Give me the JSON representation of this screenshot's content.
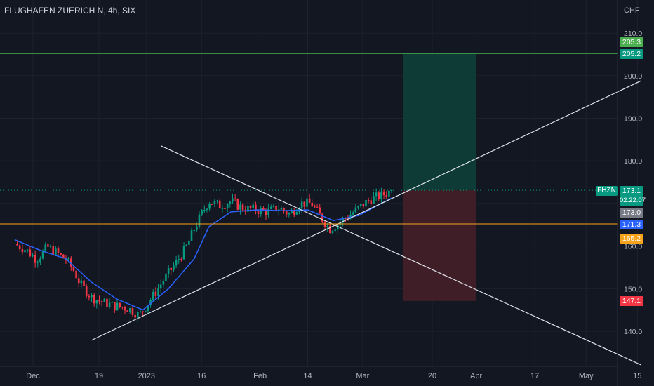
{
  "header": {
    "title": "FLUGHAFEN ZUERICH N, 4h, SIX",
    "currency": "CHF"
  },
  "colors": {
    "background": "#131722",
    "grid": "#1e222d",
    "axis_text": "#b2b5be",
    "candle_up": "#089981",
    "candle_down": "#f23645",
    "ma_line": "#2962ff",
    "trendline": "#e0e3eb",
    "support_line": "#f7a21b",
    "target_line": "#4caf50",
    "profit_zone": "#0e3b36",
    "loss_zone": "#3f1e27"
  },
  "price_labels": {
    "target_high": "205.3",
    "target_line": "205.2",
    "symbol": "FHZN",
    "last_price": "173.1",
    "countdown": "02:22:07",
    "prev_close": "173.0",
    "ma_value": "171.3",
    "support": "165.2",
    "stop": "147.1"
  },
  "chart_data": {
    "type": "candlestick",
    "title": "FLUGHAFEN ZUERICH N, 4h, SIX",
    "ylabel": "CHF",
    "ylim": [
      132,
      212
    ],
    "yticks": [
      140.0,
      150.0,
      160.0,
      170.0,
      180.0,
      190.0,
      200.0,
      210.0
    ],
    "ytick_labels": [
      "140.0",
      "150.0",
      "160.0",
      "170.0",
      "180.0",
      "190.0",
      "200.0",
      "210.0"
    ],
    "grid": true,
    "xticks": [
      {
        "label": "Dec",
        "date": "2022-12-01"
      },
      {
        "label": "19",
        "date": "2022-12-19"
      },
      {
        "label": "2023",
        "date": "2023-01-01"
      },
      {
        "label": "16",
        "date": "2023-01-16"
      },
      {
        "label": "Feb",
        "date": "2023-02-01"
      },
      {
        "label": "14",
        "date": "2023-02-14"
      },
      {
        "label": "Mar",
        "date": "2023-03-01"
      },
      {
        "label": "20",
        "date": "2023-03-20"
      },
      {
        "label": "Apr",
        "date": "2023-04-01"
      },
      {
        "label": "17",
        "date": "2023-04-17"
      },
      {
        "label": "May",
        "date": "2023-05-01"
      },
      {
        "label": "15",
        "date": "2023-05-15"
      }
    ],
    "close_path": [
      [
        "2022-11-26",
        160.5
      ],
      [
        "2022-11-29",
        159.2
      ],
      [
        "2022-12-02",
        156.8
      ],
      [
        "2022-12-05",
        159.8
      ],
      [
        "2022-12-08",
        158.0
      ],
      [
        "2022-12-10",
        156.8
      ],
      [
        "2022-12-12",
        154.5
      ],
      [
        "2022-12-14",
        151.0
      ],
      [
        "2022-12-17",
        148.0
      ],
      [
        "2022-12-20",
        146.8
      ],
      [
        "2022-12-23",
        146.0
      ],
      [
        "2022-12-27",
        145.4
      ],
      [
        "2022-12-30",
        143.8
      ],
      [
        "2023-01-03",
        148.5
      ],
      [
        "2023-01-06",
        152.5
      ],
      [
        "2023-01-09",
        156.0
      ],
      [
        "2023-01-12",
        160.0
      ],
      [
        "2023-01-14",
        164.0
      ],
      [
        "2023-01-16",
        167.5
      ],
      [
        "2023-01-18",
        170.5
      ],
      [
        "2023-01-21",
        169.5
      ],
      [
        "2023-01-24",
        170.5
      ],
      [
        "2023-01-27",
        169.0
      ],
      [
        "2023-01-31",
        168.5
      ],
      [
        "2023-02-03",
        168.0
      ],
      [
        "2023-02-06",
        169.0
      ],
      [
        "2023-02-09",
        167.5
      ],
      [
        "2023-02-12",
        170.0
      ],
      [
        "2023-02-15",
        170.0
      ],
      [
        "2023-02-17",
        167.5
      ],
      [
        "2023-02-20",
        164.0
      ],
      [
        "2023-02-22",
        165.0
      ],
      [
        "2023-02-25",
        167.0
      ],
      [
        "2023-02-28",
        169.0
      ],
      [
        "2023-03-03",
        171.0
      ],
      [
        "2023-03-06",
        171.8
      ],
      [
        "2023-03-09",
        173.1
      ]
    ],
    "moving_average": [
      [
        "2022-11-26",
        161.5
      ],
      [
        "2022-12-03",
        159.0
      ],
      [
        "2022-12-10",
        157.0
      ],
      [
        "2022-12-17",
        151.5
      ],
      [
        "2022-12-24",
        147.5
      ],
      [
        "2022-12-31",
        145.0
      ],
      [
        "2023-01-07",
        150.0
      ],
      [
        "2023-01-14",
        157.0
      ],
      [
        "2023-01-18",
        164.5
      ],
      [
        "2023-01-24",
        168.0
      ],
      [
        "2023-01-31",
        168.5
      ],
      [
        "2023-02-07",
        168.3
      ],
      [
        "2023-02-14",
        168.5
      ],
      [
        "2023-02-21",
        166.0
      ],
      [
        "2023-02-28",
        167.2
      ],
      [
        "2023-03-05",
        169.5
      ],
      [
        "2023-03-09",
        171.3
      ]
    ],
    "lines": [
      {
        "kind": "ascending-trendline",
        "from": [
          "2022-12-17",
          137.9
        ],
        "to": [
          "2023-05-16",
          198.8
        ]
      },
      {
        "kind": "descending-trendline",
        "from": [
          "2023-01-05",
          183.5
        ],
        "to": [
          "2023-05-16",
          132.1
        ]
      },
      {
        "kind": "horizontal-support",
        "value": 165.2
      },
      {
        "kind": "horizontal-target",
        "value": 205.2
      }
    ],
    "position": {
      "type": "long",
      "start": "2023-03-12",
      "end": "2023-04-01",
      "entry": 173.1,
      "target": 205.2,
      "stop": 147.1
    }
  }
}
